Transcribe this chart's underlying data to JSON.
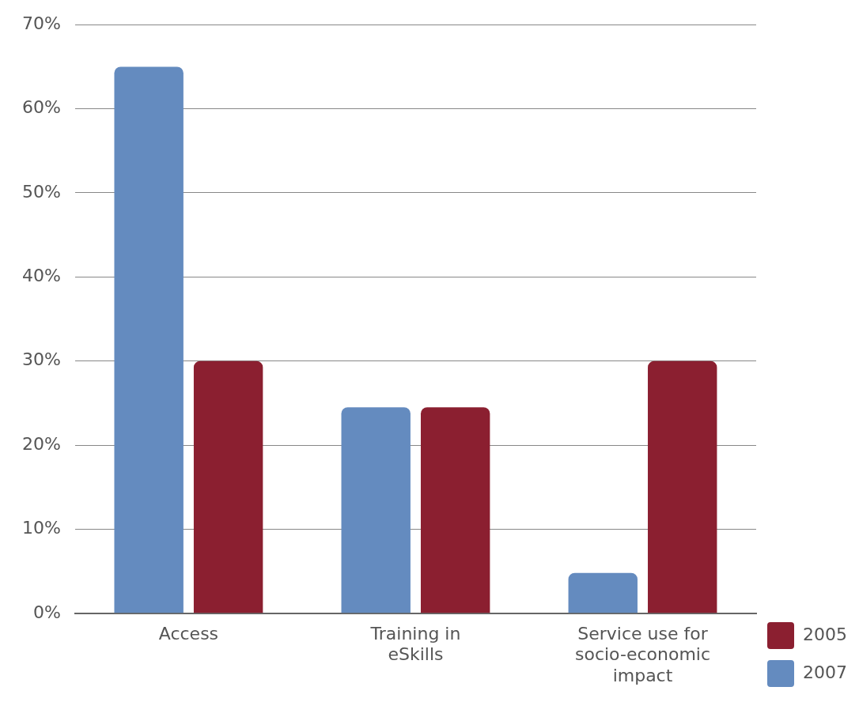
{
  "chart_data": {
    "type": "bar",
    "categories": [
      "Access",
      "Training in eSkills",
      "Service use for socio-economic impact"
    ],
    "series": [
      {
        "name": "2007",
        "color": "#648bbf",
        "values": [
          65,
          24.5,
          4.8
        ]
      },
      {
        "name": "2005",
        "color": "#8b1f30",
        "values": [
          30,
          24.5,
          30
        ]
      }
    ],
    "ylim": [
      0,
      70
    ],
    "yticks": [
      {
        "value": 0,
        "label": "0%"
      },
      {
        "value": 10,
        "label": "10%"
      },
      {
        "value": 20,
        "label": "20%"
      },
      {
        "value": 30,
        "label": "30%"
      },
      {
        "value": 40,
        "label": "40%"
      },
      {
        "value": 50,
        "label": "50%"
      },
      {
        "value": 60,
        "label": "60%"
      },
      {
        "value": 70,
        "label": "70%"
      }
    ],
    "grid": "y",
    "legend": "bottom right"
  }
}
